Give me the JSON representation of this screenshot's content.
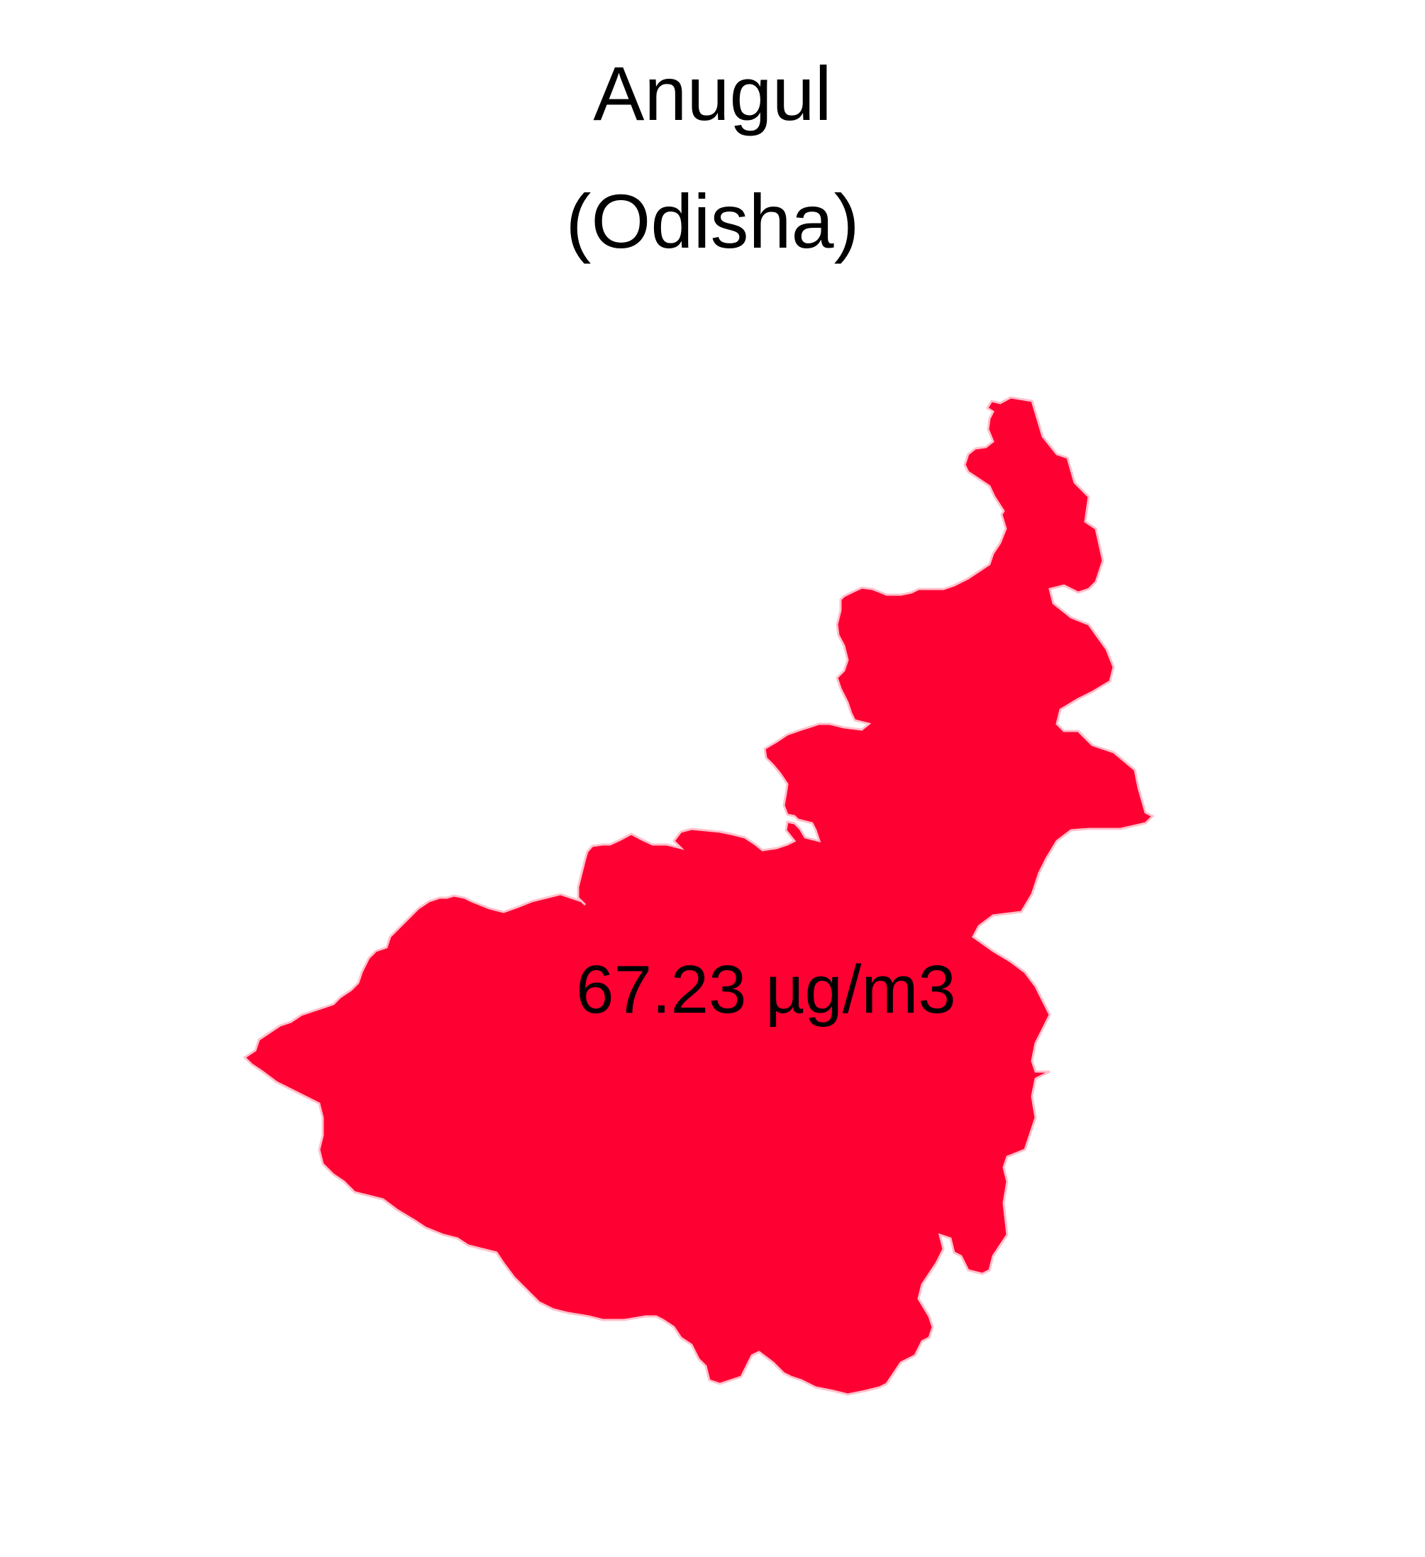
{
  "title": {
    "district": "Anugul",
    "state": "(Odisha)"
  },
  "map": {
    "region_name": "Anugul",
    "value_label": "67.23 µg/m3",
    "fill_color": "#ff0033",
    "outline_color": "#ffc0cb"
  }
}
